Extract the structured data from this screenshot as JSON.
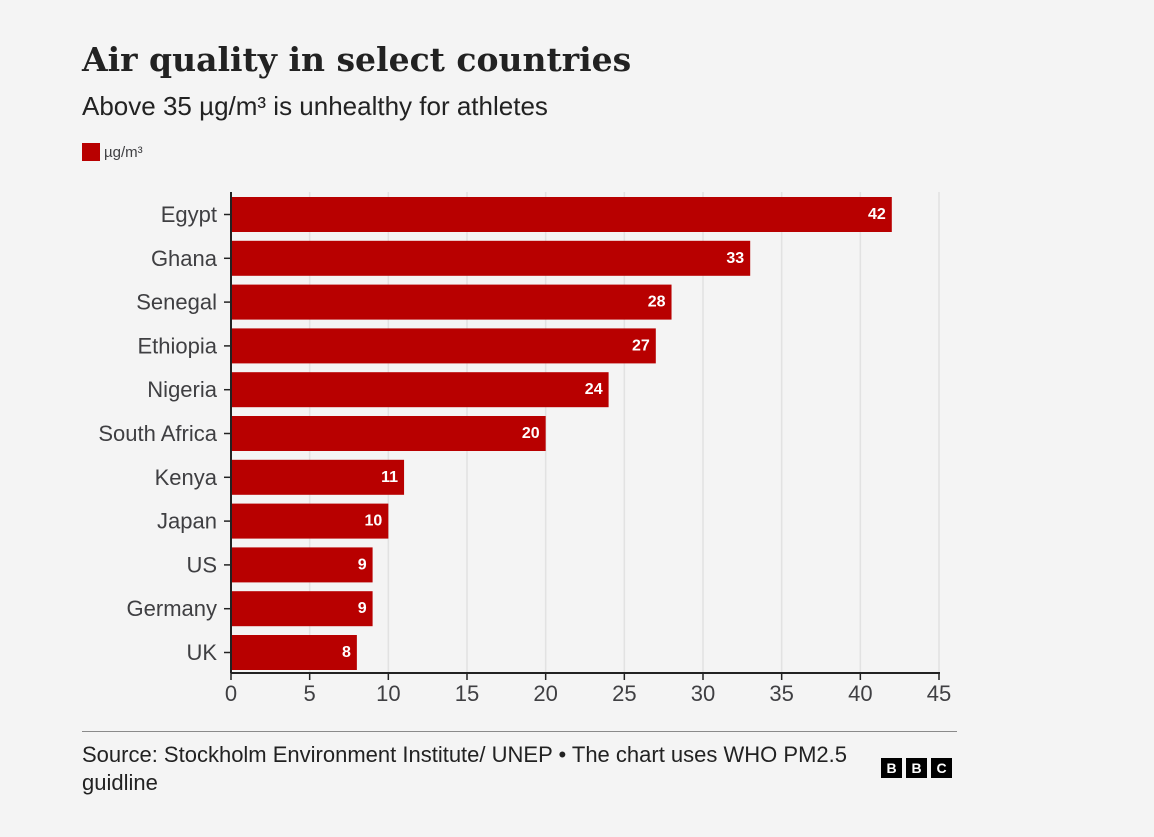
{
  "title": "Air quality in select countries",
  "subtitle": "Above 35 µg/m³ is unhealthy for athletes",
  "legend": {
    "label": "µg/m³",
    "color": "#b80000"
  },
  "source": "Source: Stockholm Environment Institute/ UNEP • The chart uses WHO PM2.5 guidline",
  "logo": [
    "B",
    "B",
    "C"
  ],
  "chart_data": {
    "type": "bar",
    "orientation": "horizontal",
    "categories": [
      "Egypt",
      "Ghana",
      "Senegal",
      "Ethiopia",
      "Nigeria",
      "South Africa",
      "Kenya",
      "Japan",
      "US",
      "Germany",
      "UK"
    ],
    "series": [
      {
        "name": "µg/m³",
        "values": [
          42,
          33,
          28,
          27,
          24,
          20,
          11,
          10,
          9,
          9,
          8
        ],
        "color": "#b80000"
      }
    ],
    "data_labels": [
      "42",
      "33",
      "28",
      "27",
      "24",
      "20",
      "11",
      "10",
      "9",
      "9",
      "8"
    ],
    "xticks": [
      0,
      5,
      10,
      15,
      20,
      25,
      30,
      35,
      40,
      45
    ],
    "xlim": [
      0,
      45
    ],
    "xlabel": "",
    "ylabel": "",
    "grid": "vertical",
    "legend": "top-left"
  }
}
